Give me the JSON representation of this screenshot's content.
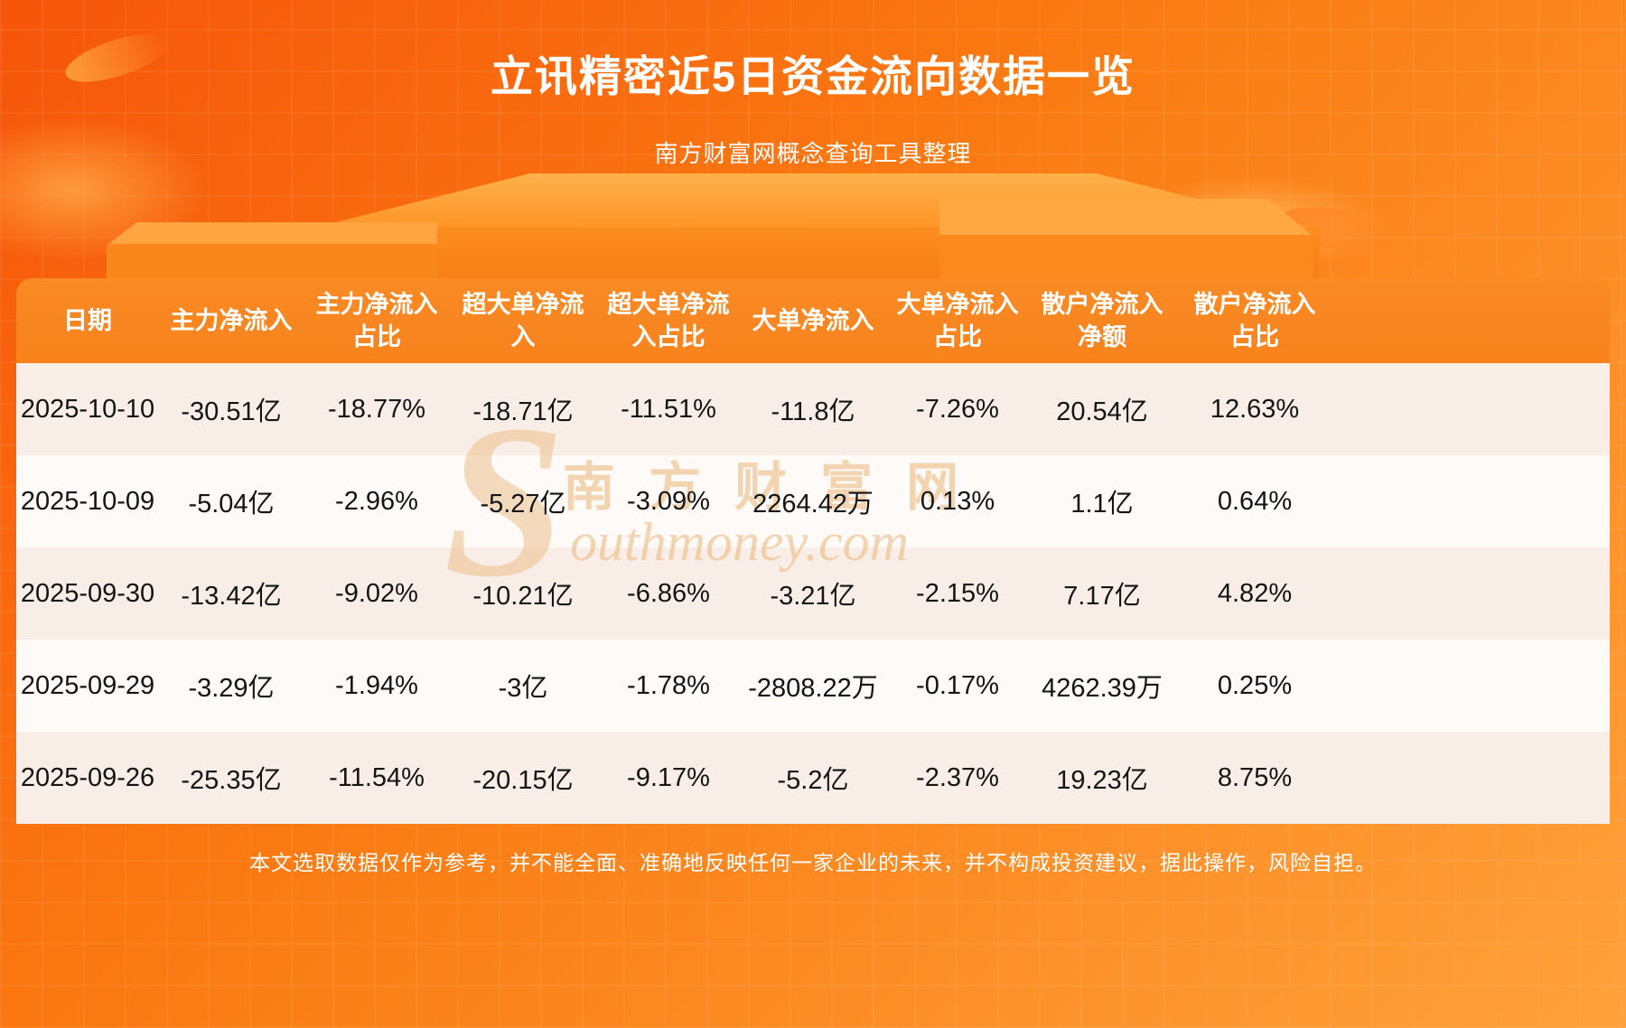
{
  "page": {
    "title": "立讯精密近5日资金流向数据一览",
    "subtitle": "南方财富网概念查询工具整理",
    "disclaimer": "本文选取数据仅作为参考，并不能全面、准确地反映任何一家企业的未来，并不构成投资建议，据此操作，风险自担。"
  },
  "watermark": {
    "cn": "南方财富网",
    "en_initial": "S",
    "en_rest": "outhmoney.com"
  },
  "colors": {
    "bg_top": "#f6550a",
    "bg_bottom": "#ffa13a",
    "header_bg": "#f8831d",
    "row_light": "#fdfaf8",
    "row_shaded": "#f8eee7",
    "cell_text": "#141414",
    "title_text": "#ffffff"
  },
  "chart_data": {
    "type": "table",
    "title": "立讯精密近5日资金流向数据一览",
    "columns": [
      "日期",
      "主力净流入",
      "主力净流入\n占比",
      "超大单净流\n入",
      "超大单净流\n入占比",
      "大单净流入",
      "大单净流入\n占比",
      "散户净流入\n净额",
      "散户净流入\n占比"
    ],
    "rows": [
      [
        "2025-10-10",
        "-30.51亿",
        "-18.77%",
        "-18.71亿",
        "-11.51%",
        "-11.8亿",
        "-7.26%",
        "20.54亿",
        "12.63%"
      ],
      [
        "2025-10-09",
        "-5.04亿",
        "-2.96%",
        "-5.27亿",
        "-3.09%",
        "2264.42万",
        "0.13%",
        "1.1亿",
        "0.64%"
      ],
      [
        "2025-09-30",
        "-13.42亿",
        "-9.02%",
        "-10.21亿",
        "-6.86%",
        "-3.21亿",
        "-2.15%",
        "7.17亿",
        "4.82%"
      ],
      [
        "2025-09-29",
        "-3.29亿",
        "-1.94%",
        "-3亿",
        "-1.78%",
        "-2808.22万",
        "-0.17%",
        "4262.39万",
        "0.25%"
      ],
      [
        "2025-09-26",
        "-25.35亿",
        "-11.54%",
        "-20.15亿",
        "-9.17%",
        "-5.2亿",
        "-2.37%",
        "19.23亿",
        "8.75%"
      ]
    ]
  }
}
